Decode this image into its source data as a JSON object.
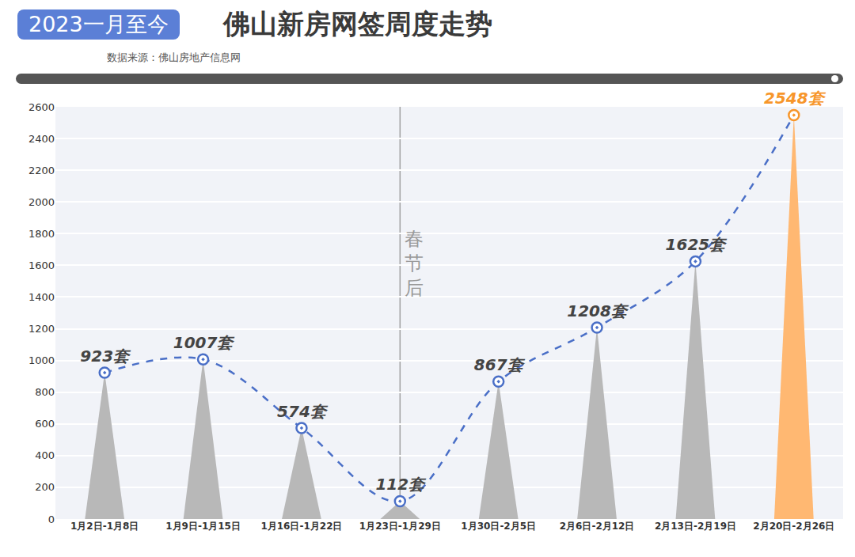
{
  "chart_data": {
    "type": "bar",
    "title": "佛山新房网签周度走势",
    "subtitle": "2023一月至今",
    "source": "数据来源：佛山房地产信息网",
    "categories": [
      "1月2日-1月8日",
      "1月9日-1月15日",
      "1月16日-1月22日",
      "1月23日-1月29日",
      "1月30日-2月5日",
      "2月6日-2月12日",
      "2月13日-2月19日",
      "2月20日-2月26日"
    ],
    "series": [
      {
        "type": "bar",
        "values": [
          923,
          1007,
          574,
          112,
          867,
          1208,
          1625,
          2548
        ],
        "colors": [
          "#b8b8b8",
          "#b8b8b8",
          "#b8b8b8",
          "#b8b8b8",
          "#b8b8b8",
          "#b8b8b8",
          "#b8b8b8",
          "#ffb872"
        ]
      },
      {
        "type": "line",
        "values": [
          923,
          1007,
          574,
          112,
          867,
          1208,
          1625,
          2548
        ],
        "value_labels": [
          "923套",
          "1007套",
          "574套",
          "112套",
          "867套",
          "1208套",
          "1625套",
          "2548套"
        ],
        "color": "#4a6fc7",
        "colors": [
          "#4a6fc7",
          "#4a6fc7",
          "#4a6fc7",
          "#4a6fc7",
          "#4a6fc7",
          "#4a6fc7",
          "#4a6fc7",
          "#f7962a"
        ],
        "line_style": "dashed",
        "marker": "circle"
      }
    ],
    "data_labels": true,
    "annotations": [
      {
        "text": "春节后",
        "x": "1月23日-1月29日"
      }
    ],
    "ylim": [
      0,
      2600
    ],
    "yticks": [
      0,
      200,
      400,
      600,
      800,
      1000,
      1200,
      1400,
      1600,
      1800,
      2000,
      2200,
      2400,
      2600
    ],
    "grid": true
  }
}
